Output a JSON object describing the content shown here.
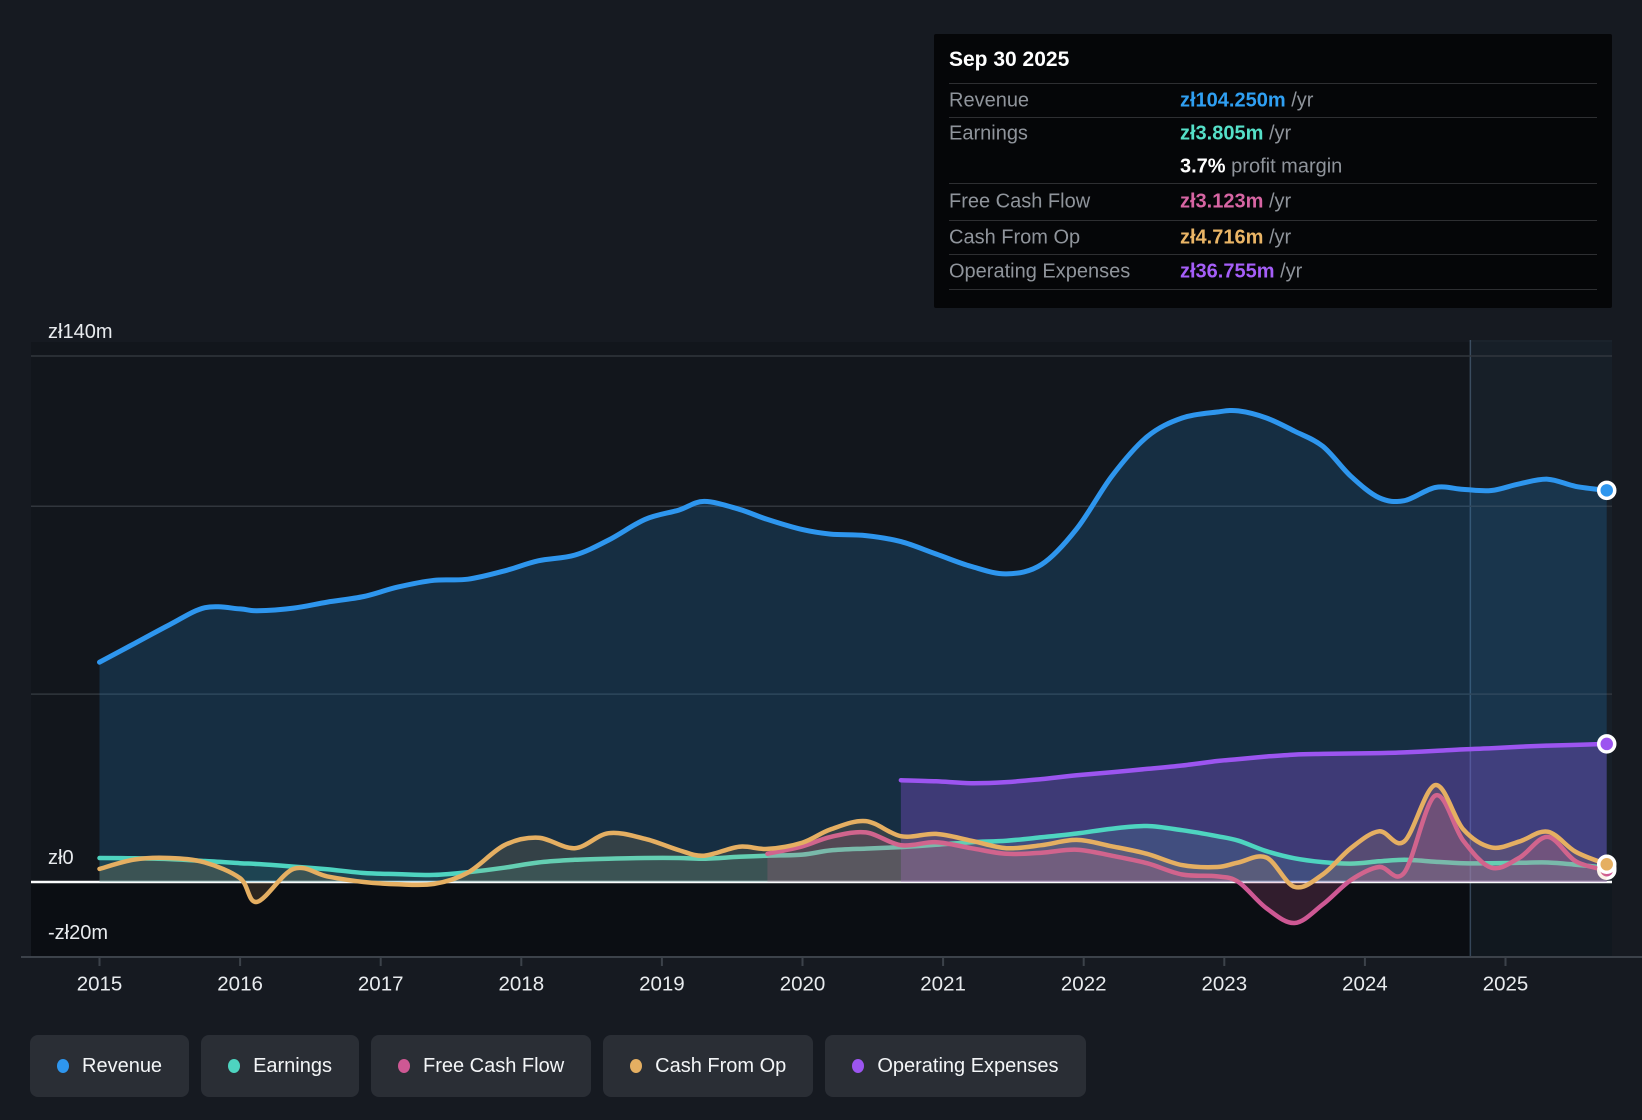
{
  "tooltip": {
    "date": "Sep 30 2025",
    "rows": [
      {
        "key": "revenue",
        "label": "Revenue",
        "value": "zł104.250m",
        "suffix": "/yr",
        "color": "#2F9FF2"
      },
      {
        "key": "earnings",
        "label": "Earnings",
        "value": "zł3.805m",
        "suffix": "/yr",
        "color": "#55E0C8",
        "sub": {
          "value": "3.7%",
          "text": "profit margin"
        }
      },
      {
        "key": "free-cash-flow",
        "label": "Free Cash Flow",
        "value": "zł3.123m",
        "suffix": "/yr",
        "color": "#D765A3"
      },
      {
        "key": "cash-from-op",
        "label": "Cash From Op",
        "value": "zł4.716m",
        "suffix": "/yr",
        "color": "#EAB566"
      },
      {
        "key": "operating-expenses",
        "label": "Operating Expenses",
        "value": "zł36.755m",
        "suffix": "/yr",
        "color": "#A55EF8"
      }
    ]
  },
  "legend": [
    {
      "key": "revenue",
      "label": "Revenue",
      "color": "#2E96EE"
    },
    {
      "key": "earnings",
      "label": "Earnings",
      "color": "#4ED4C0"
    },
    {
      "key": "free-cash-flow",
      "label": "Free Cash Flow",
      "color": "#CE5894"
    },
    {
      "key": "cash-from-op",
      "label": "Cash From Op",
      "color": "#E5AF62"
    },
    {
      "key": "operating-expenses",
      "label": "Operating Expenses",
      "color": "#9C55F0"
    }
  ],
  "chart_data": {
    "type": "area",
    "unit": "zł millions per year",
    "x_years": [
      2015.0,
      2015.25,
      2015.5,
      2015.75,
      2016.0,
      2016.12,
      2016.38,
      2016.62,
      2016.88,
      2017.12,
      2017.38,
      2017.62,
      2017.88,
      2018.12,
      2018.38,
      2018.62,
      2018.88,
      2019.12,
      2019.3,
      2019.55,
      2019.75,
      2020.0,
      2020.2,
      2020.45,
      2020.7,
      2020.95,
      2021.2,
      2021.45,
      2021.7,
      2021.95,
      2022.2,
      2022.45,
      2022.7,
      2022.95,
      2023.1,
      2023.3,
      2023.5,
      2023.7,
      2023.9,
      2024.1,
      2024.28,
      2024.5,
      2024.7,
      2024.9,
      2025.1,
      2025.3,
      2025.5,
      2025.72
    ],
    "series": [
      {
        "name": "Revenue",
        "key": "revenue",
        "color": "#2E96EE",
        "fill": "rgba(38,130,205,0.22)",
        "width": 5,
        "values": [
          58.5,
          63.5,
          68.5,
          73.0,
          72.7,
          72.2,
          72.9,
          74.5,
          76.0,
          78.5,
          80.3,
          80.6,
          82.8,
          85.5,
          87.0,
          91.0,
          96.5,
          99.0,
          101.3,
          99.2,
          96.5,
          93.8,
          92.6,
          92.2,
          90.6,
          87.3,
          84.0,
          82.0,
          84.5,
          94.0,
          108.0,
          118.5,
          123.5,
          125.1,
          125.4,
          123.5,
          120.0,
          116.0,
          108.0,
          102.3,
          101.5,
          105.0,
          104.5,
          104.2,
          106.0,
          107.2,
          105.3,
          104.25
        ]
      },
      {
        "name": "Operating Expenses",
        "key": "operating-expenses",
        "color": "#9C55F0",
        "fill": "rgba(156,85,240,0.30)",
        "width": 4.5,
        "values": [
          null,
          null,
          null,
          null,
          null,
          null,
          null,
          null,
          null,
          null,
          null,
          null,
          null,
          null,
          null,
          null,
          null,
          null,
          null,
          null,
          null,
          null,
          null,
          null,
          27.1,
          26.8,
          26.3,
          26.6,
          27.4,
          28.4,
          29.2,
          30.1,
          31.0,
          32.2,
          32.7,
          33.4,
          33.9,
          34.1,
          34.2,
          34.3,
          34.5,
          34.9,
          35.3,
          35.6,
          36.0,
          36.3,
          36.5,
          36.755
        ]
      },
      {
        "name": "Earnings",
        "key": "earnings",
        "color": "#4ED4C0",
        "fill": "rgba(88,214,196,0.13)",
        "width": 4.5,
        "values": [
          6.4,
          6.3,
          6.1,
          5.6,
          5.0,
          4.8,
          4.1,
          3.4,
          2.4,
          2.1,
          1.9,
          2.6,
          3.8,
          5.2,
          5.9,
          6.2,
          6.4,
          6.4,
          6.2,
          6.7,
          7.0,
          7.3,
          8.4,
          8.9,
          9.3,
          9.9,
          10.6,
          11.0,
          11.9,
          12.9,
          14.2,
          14.9,
          13.8,
          12.2,
          11.0,
          8.2,
          6.3,
          5.3,
          4.9,
          5.5,
          5.9,
          5.4,
          5.0,
          5.0,
          5.1,
          5.2,
          4.6,
          3.805
        ]
      },
      {
        "name": "Free Cash Flow",
        "key": "free-cash-flow",
        "color": "#CE5894",
        "fill": "rgba(206,88,148,0.20)",
        "width": 4.5,
        "values": [
          null,
          null,
          null,
          null,
          null,
          null,
          null,
          null,
          null,
          null,
          null,
          null,
          null,
          null,
          null,
          null,
          null,
          null,
          null,
          null,
          7.5,
          9.5,
          12.0,
          13.2,
          9.8,
          10.6,
          9.0,
          7.5,
          7.8,
          8.6,
          7.0,
          5.0,
          2.0,
          1.5,
          0.0,
          -7.0,
          -10.9,
          -6.0,
          0.5,
          4.0,
          2.5,
          23.0,
          11.0,
          3.8,
          6.5,
          12.0,
          5.5,
          3.123
        ]
      },
      {
        "name": "Cash From Op",
        "key": "cash-from-op",
        "color": "#E5AF62",
        "fill": "rgba(229,175,98,0.15)",
        "width": 4.5,
        "values": [
          3.5,
          6.0,
          6.4,
          5.2,
          1.0,
          -5.3,
          3.5,
          1.5,
          0.0,
          -0.6,
          -0.5,
          2.5,
          9.8,
          11.8,
          9.0,
          13.0,
          11.5,
          8.5,
          7.0,
          9.4,
          8.8,
          10.5,
          14.0,
          16.2,
          12.2,
          12.8,
          11.0,
          9.0,
          9.8,
          11.2,
          9.5,
          7.5,
          4.5,
          4.0,
          5.2,
          6.5,
          -1.3,
          2.0,
          9.0,
          13.5,
          10.8,
          25.8,
          14.0,
          9.2,
          10.8,
          13.4,
          8.0,
          4.716
        ]
      }
    ],
    "y_gridlines": [
      {
        "v": 140,
        "label": "zł140m"
      },
      {
        "v": 100,
        "label": ""
      },
      {
        "v": 50,
        "label": ""
      },
      {
        "v": 0,
        "label": "zł0",
        "zero": true
      },
      {
        "v": -20,
        "label": "-zł20m"
      }
    ],
    "x_ticks": [
      2015,
      2016,
      2017,
      2018,
      2019,
      2020,
      2021,
      2022,
      2023,
      2024,
      2025
    ],
    "ylim": [
      -22,
      148
    ],
    "xlim": [
      2015,
      2025.97
    ],
    "highlight_region": {
      "from": 2024.75,
      "to": 2025.75
    },
    "legend_position": "bottom",
    "grid": true
  },
  "layout_colors": {
    "page_bg": "#161A21",
    "plot_bg": "#12161C",
    "below_zero_bg": "#0B0E13",
    "gridline": "#31363D",
    "zero_line": "#FAFBFC",
    "axis_line": "#3C424A",
    "tick_label": "#E8EBEE",
    "band_fill": "rgba(96,150,205,0.07)",
    "band_line": "rgba(125,165,205,0.35)"
  }
}
